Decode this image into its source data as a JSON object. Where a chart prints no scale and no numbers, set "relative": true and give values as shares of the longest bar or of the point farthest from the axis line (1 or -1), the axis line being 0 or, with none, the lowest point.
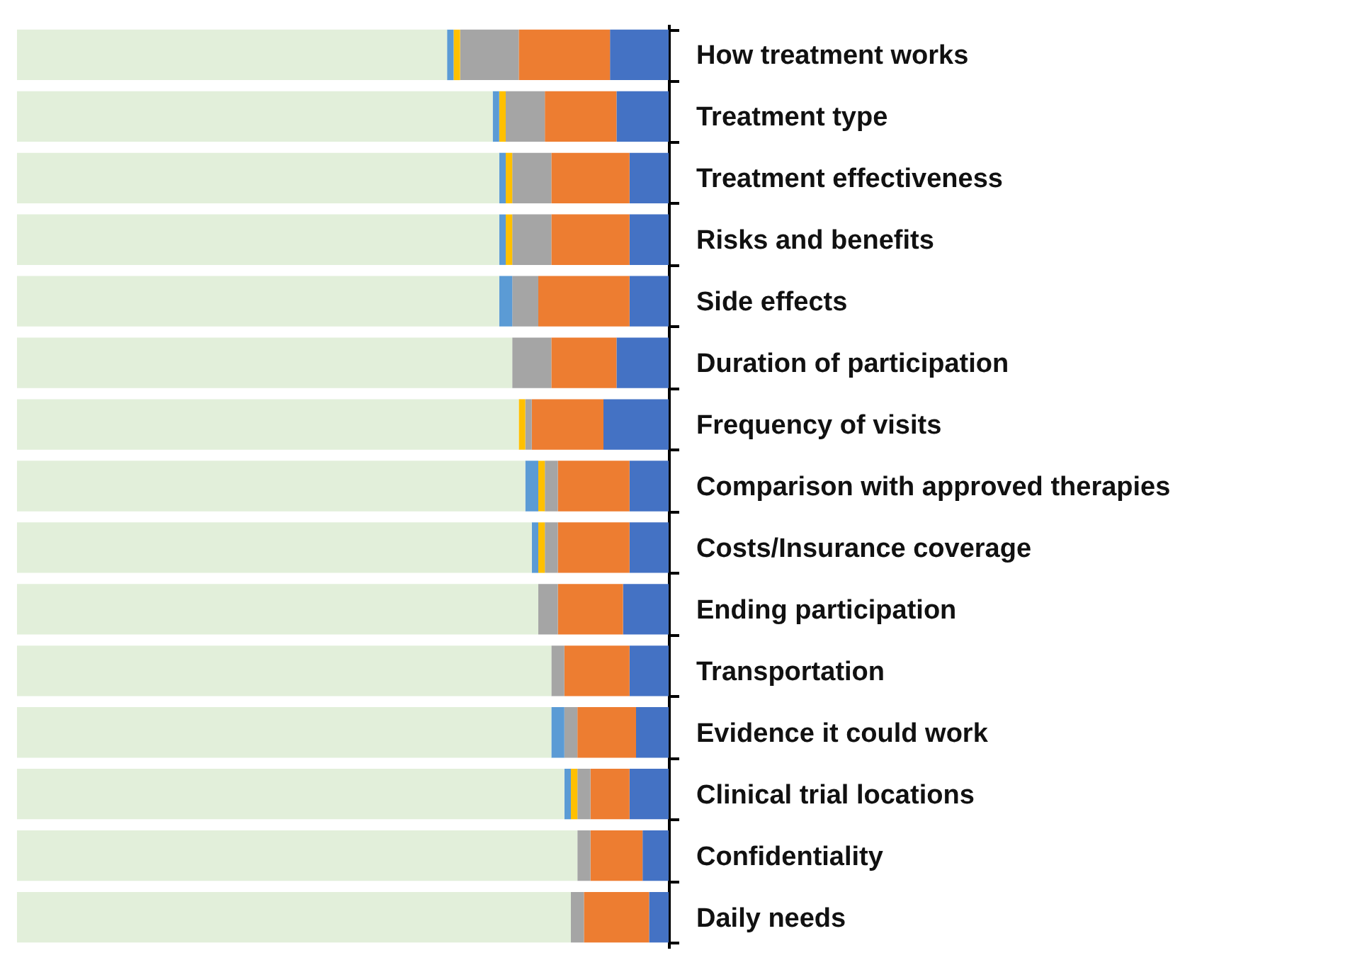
{
  "chart_data": {
    "type": "bar",
    "orientation": "horizontal",
    "stacked": true,
    "relative": true,
    "grid": false,
    "legend": false,
    "categories": [
      "How treatment works",
      "Treatment type",
      "Treatment effectiveness",
      "Risks and benefits",
      "Side effects",
      "Duration of participation",
      "Frequency of visits",
      "Comparison with approved therapies",
      "Costs/Insurance coverage",
      "Ending participation",
      "Transportation",
      "Evidence it could work",
      "Clinical trial locations",
      "Confidentiality",
      "Daily needs"
    ],
    "series": [
      {
        "color": "#4472c4",
        "values": [
          0.09,
          0.08,
          0.06,
          0.06,
          0.06,
          0.08,
          0.1,
          0.06,
          0.06,
          0.07,
          0.06,
          0.05,
          0.06,
          0.04,
          0.03
        ]
      },
      {
        "color": "#ed7d31",
        "values": [
          0.14,
          0.11,
          0.12,
          0.12,
          0.14,
          0.1,
          0.11,
          0.11,
          0.11,
          0.1,
          0.1,
          0.09,
          0.06,
          0.08,
          0.1
        ]
      },
      {
        "color": "#a5a5a5",
        "values": [
          0.09,
          0.06,
          0.06,
          0.06,
          0.04,
          0.06,
          0.01,
          0.02,
          0.02,
          0.03,
          0.02,
          0.02,
          0.02,
          0.02,
          0.02
        ]
      },
      {
        "color": "#ffc000",
        "values": [
          0.01,
          0.01,
          0.01,
          0.01,
          0.0,
          0.0,
          0.01,
          0.01,
          0.01,
          0.0,
          0.0,
          0.0,
          0.01,
          0.0,
          0.0
        ]
      },
      {
        "color": "#5b9bd5",
        "values": [
          0.01,
          0.01,
          0.01,
          0.01,
          0.02,
          0.0,
          0.0,
          0.02,
          0.01,
          0.0,
          0.0,
          0.02,
          0.01,
          0.0,
          0.0
        ]
      },
      {
        "color": "#e2efda",
        "values": [
          0.66,
          0.73,
          0.74,
          0.74,
          0.74,
          0.76,
          0.77,
          0.78,
          0.79,
          0.8,
          0.82,
          0.82,
          0.84,
          0.86,
          0.85
        ]
      }
    ]
  }
}
